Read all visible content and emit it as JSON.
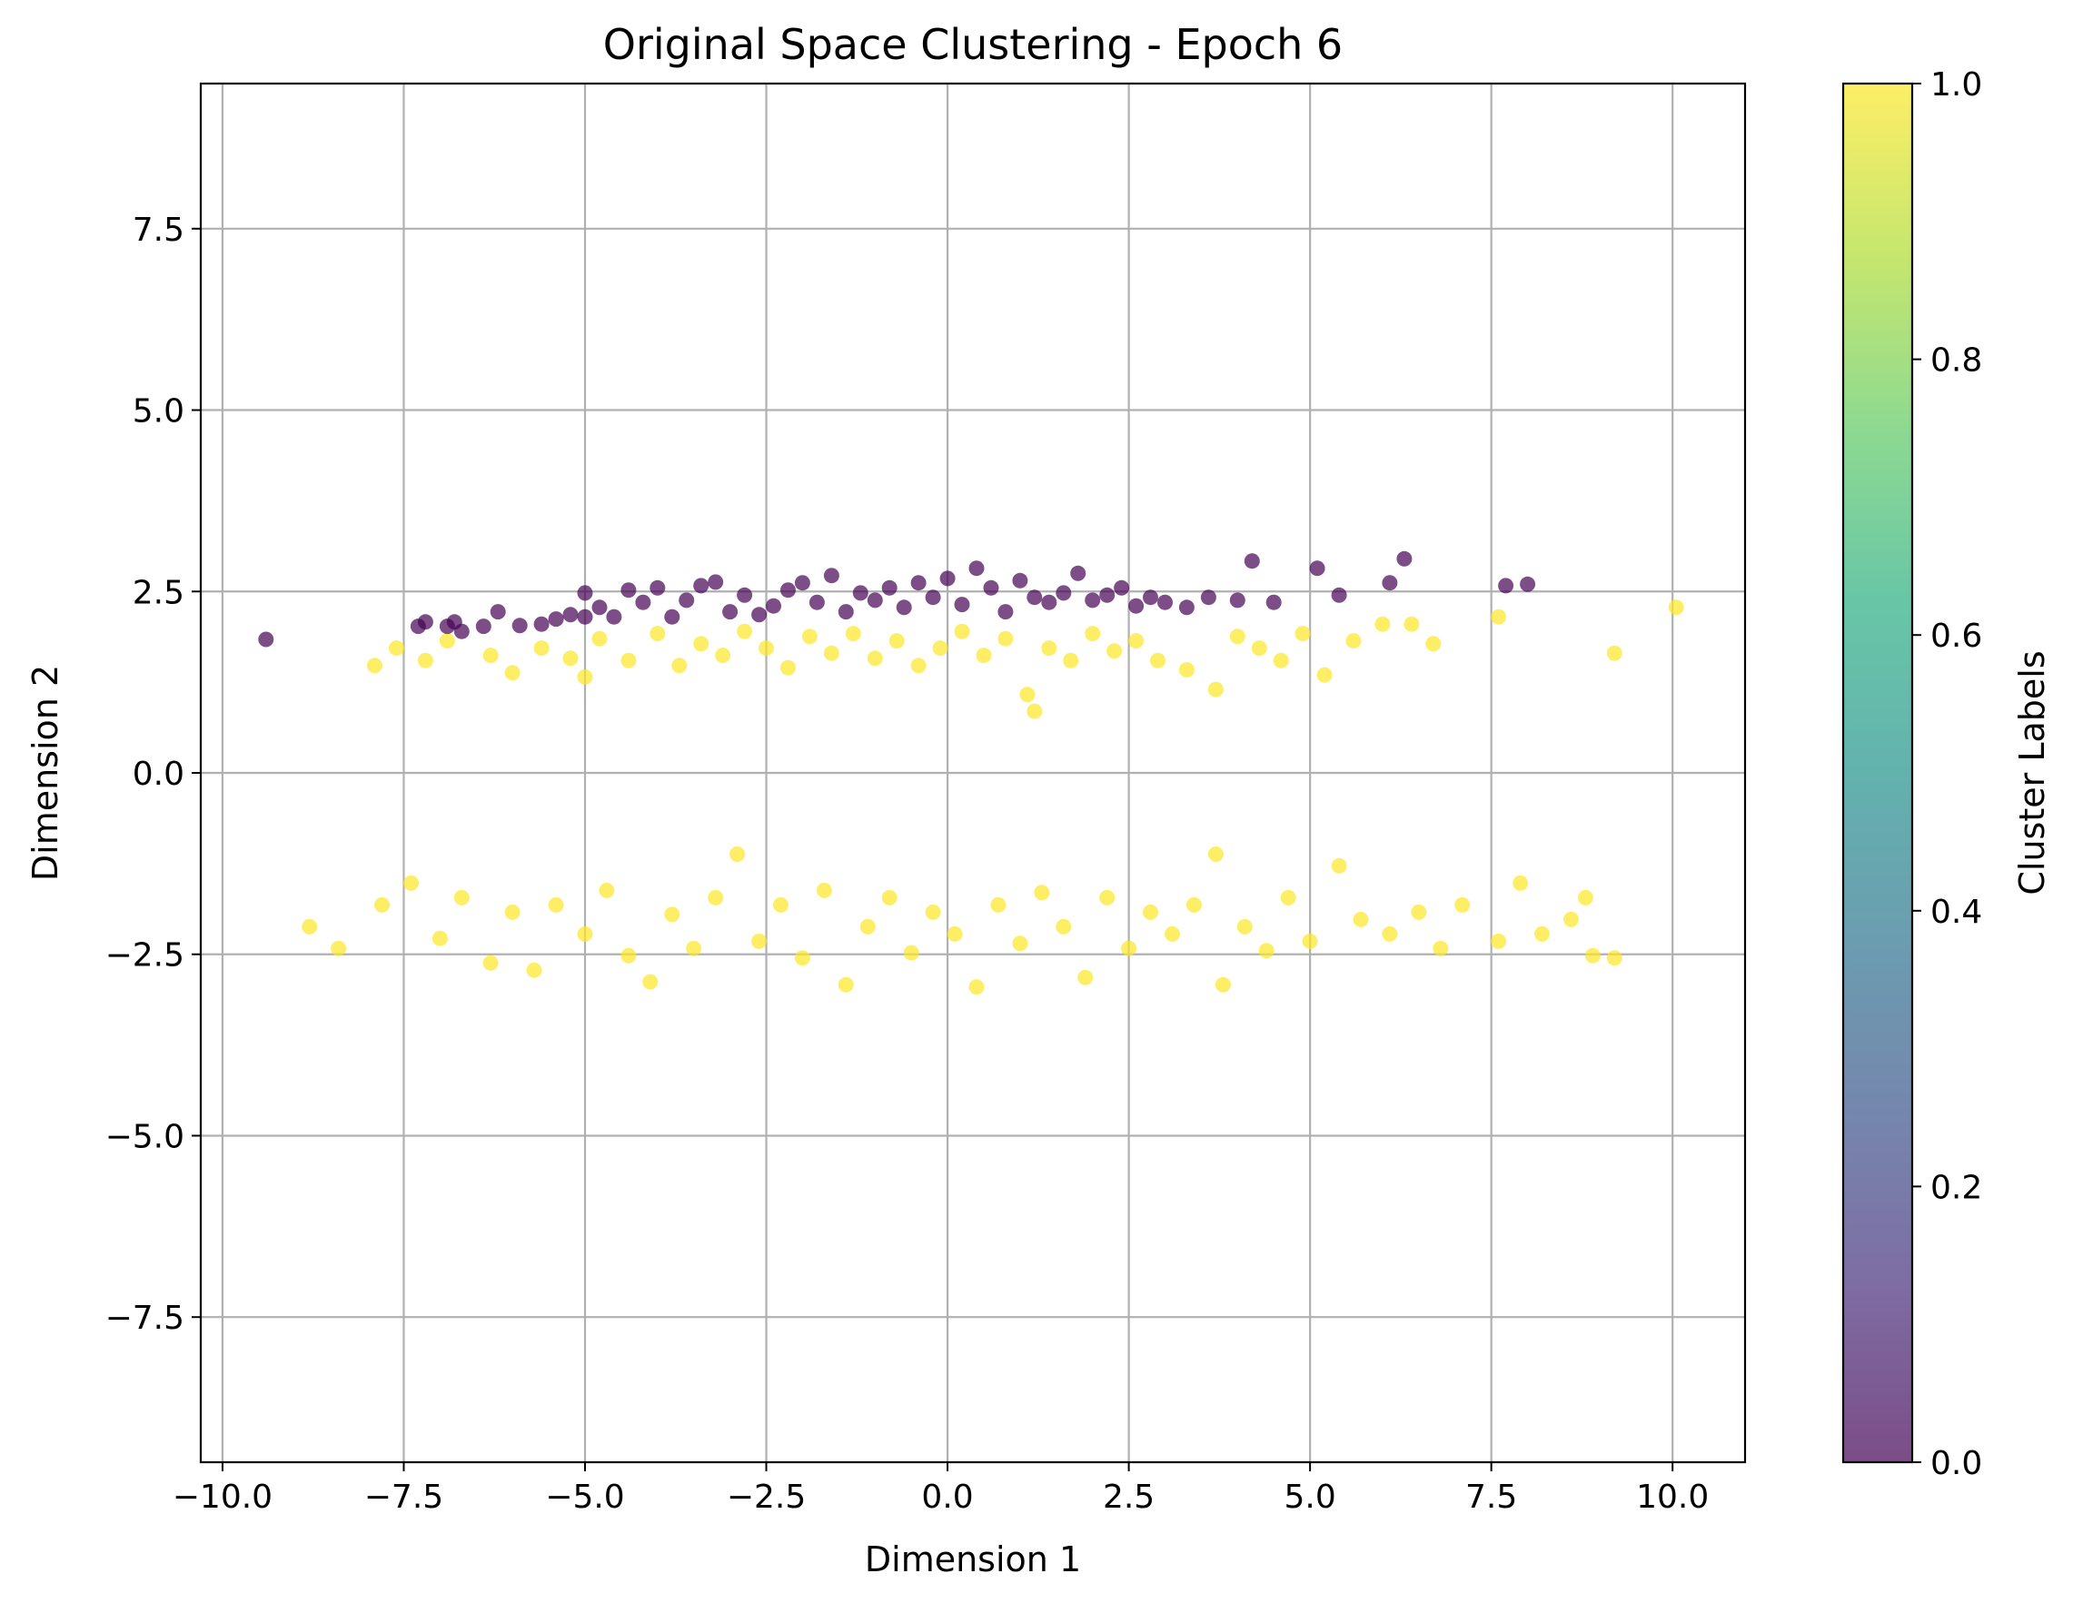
{
  "chart_data": {
    "type": "scatter",
    "title": "Original Space Clustering - Epoch 6",
    "xlabel": "Dimension 1",
    "ylabel": "Dimension 2",
    "xlim": [
      -10.3,
      11.0
    ],
    "ylim": [
      -9.5,
      9.5
    ],
    "grid": true,
    "xticks": [
      -10.0,
      -7.5,
      -5.0,
      -2.5,
      0.0,
      2.5,
      5.0,
      7.5,
      10.0
    ],
    "xtick_labels": [
      "−10.0",
      "−7.5",
      "−5.0",
      "−2.5",
      "0.0",
      "2.5",
      "5.0",
      "7.5",
      "10.0"
    ],
    "yticks": [
      -7.5,
      -5.0,
      -2.5,
      0.0,
      2.5,
      5.0,
      7.5
    ],
    "ytick_labels": [
      "−7.5",
      "−5.0",
      "−2.5",
      "0.0",
      "2.5",
      "5.0",
      "7.5"
    ],
    "colorbar": {
      "label": "Cluster Labels",
      "range": [
        0.0,
        1.0
      ],
      "ticks": [
        0.0,
        0.2,
        0.4,
        0.6,
        0.8,
        1.0
      ],
      "tick_labels": [
        "0.0",
        "0.2",
        "0.4",
        "0.6",
        "0.8",
        "1.0"
      ],
      "colormap": "viridis",
      "alpha": 0.7
    },
    "series": [
      {
        "label_value": 0,
        "color": "#440154",
        "points": [
          [
            -9.4,
            1.84
          ],
          [
            -7.3,
            2.02
          ],
          [
            -7.2,
            2.08
          ],
          [
            -6.9,
            2.02
          ],
          [
            -6.8,
            2.08
          ],
          [
            -6.7,
            1.95
          ],
          [
            -6.4,
            2.02
          ],
          [
            -6.2,
            2.22
          ],
          [
            -5.9,
            2.03
          ],
          [
            -5.6,
            2.05
          ],
          [
            -5.4,
            2.12
          ],
          [
            -5.2,
            2.18
          ],
          [
            -5.0,
            2.15
          ],
          [
            -5.0,
            2.48
          ],
          [
            -4.8,
            2.28
          ],
          [
            -4.6,
            2.15
          ],
          [
            -4.4,
            2.52
          ],
          [
            -4.2,
            2.35
          ],
          [
            -4.0,
            2.55
          ],
          [
            -3.8,
            2.15
          ],
          [
            -3.6,
            2.38
          ],
          [
            -3.4,
            2.58
          ],
          [
            -3.2,
            2.63
          ],
          [
            -3.0,
            2.22
          ],
          [
            -2.8,
            2.45
          ],
          [
            -2.6,
            2.18
          ],
          [
            -2.4,
            2.3
          ],
          [
            -2.2,
            2.52
          ],
          [
            -2.0,
            2.62
          ],
          [
            -1.8,
            2.35
          ],
          [
            -1.6,
            2.72
          ],
          [
            -1.4,
            2.22
          ],
          [
            -1.2,
            2.48
          ],
          [
            -1.0,
            2.38
          ],
          [
            -0.8,
            2.55
          ],
          [
            -0.6,
            2.28
          ],
          [
            -0.4,
            2.62
          ],
          [
            -0.2,
            2.42
          ],
          [
            0.0,
            2.68
          ],
          [
            0.2,
            2.32
          ],
          [
            0.4,
            2.82
          ],
          [
            0.6,
            2.55
          ],
          [
            0.8,
            2.22
          ],
          [
            1.0,
            2.65
          ],
          [
            1.2,
            2.42
          ],
          [
            1.4,
            2.35
          ],
          [
            1.6,
            2.48
          ],
          [
            1.8,
            2.75
          ],
          [
            2.0,
            2.38
          ],
          [
            2.2,
            2.45
          ],
          [
            2.4,
            2.55
          ],
          [
            2.6,
            2.3
          ],
          [
            2.8,
            2.42
          ],
          [
            3.0,
            2.35
          ],
          [
            3.3,
            2.28
          ],
          [
            3.6,
            2.42
          ],
          [
            4.0,
            2.38
          ],
          [
            4.2,
            2.92
          ],
          [
            4.5,
            2.35
          ],
          [
            5.1,
            2.82
          ],
          [
            5.4,
            2.45
          ],
          [
            6.1,
            2.62
          ],
          [
            6.3,
            2.95
          ],
          [
            7.7,
            2.58
          ],
          [
            8.0,
            2.6
          ]
        ]
      },
      {
        "label_value": 1,
        "color": "#fde725",
        "points": [
          [
            -7.9,
            1.48
          ],
          [
            -7.6,
            1.72
          ],
          [
            -7.2,
            1.55
          ],
          [
            -6.9,
            1.82
          ],
          [
            -6.3,
            1.62
          ],
          [
            -6.0,
            1.38
          ],
          [
            -5.6,
            1.72
          ],
          [
            -5.2,
            1.58
          ],
          [
            -5.0,
            1.32
          ],
          [
            -4.8,
            1.85
          ],
          [
            -4.4,
            1.55
          ],
          [
            -4.0,
            1.92
          ],
          [
            -3.7,
            1.48
          ],
          [
            -3.4,
            1.78
          ],
          [
            -3.1,
            1.62
          ],
          [
            -2.8,
            1.95
          ],
          [
            -2.5,
            1.72
          ],
          [
            -2.2,
            1.45
          ],
          [
            -1.9,
            1.88
          ],
          [
            -1.6,
            1.65
          ],
          [
            -1.3,
            1.92
          ],
          [
            -1.0,
            1.58
          ],
          [
            -0.7,
            1.82
          ],
          [
            -0.4,
            1.48
          ],
          [
            -0.1,
            1.72
          ],
          [
            0.2,
            1.95
          ],
          [
            0.5,
            1.62
          ],
          [
            0.8,
            1.85
          ],
          [
            1.1,
            1.08
          ],
          [
            1.2,
            0.85
          ],
          [
            1.4,
            1.72
          ],
          [
            1.7,
            1.55
          ],
          [
            2.0,
            1.92
          ],
          [
            2.3,
            1.68
          ],
          [
            2.6,
            1.82
          ],
          [
            2.9,
            1.55
          ],
          [
            3.3,
            1.42
          ],
          [
            3.7,
            1.15
          ],
          [
            4.0,
            1.88
          ],
          [
            4.3,
            1.72
          ],
          [
            4.6,
            1.55
          ],
          [
            4.9,
            1.92
          ],
          [
            5.2,
            1.35
          ],
          [
            5.6,
            1.82
          ],
          [
            6.0,
            2.05
          ],
          [
            6.4,
            2.05
          ],
          [
            6.7,
            1.78
          ],
          [
            7.6,
            2.15
          ],
          [
            9.2,
            1.65
          ],
          [
            10.05,
            2.28
          ],
          [
            -8.8,
            -2.12
          ],
          [
            -8.4,
            -2.42
          ],
          [
            -7.8,
            -1.82
          ],
          [
            -7.4,
            -1.52
          ],
          [
            -7.0,
            -2.28
          ],
          [
            -6.7,
            -1.72
          ],
          [
            -6.3,
            -2.62
          ],
          [
            -6.0,
            -1.92
          ],
          [
            -5.7,
            -2.72
          ],
          [
            -5.4,
            -1.82
          ],
          [
            -5.0,
            -2.22
          ],
          [
            -4.7,
            -1.62
          ],
          [
            -4.4,
            -2.52
          ],
          [
            -4.1,
            -2.88
          ],
          [
            -3.8,
            -1.95
          ],
          [
            -3.5,
            -2.42
          ],
          [
            -3.2,
            -1.72
          ],
          [
            -2.9,
            -1.12
          ],
          [
            -2.6,
            -2.32
          ],
          [
            -2.3,
            -1.82
          ],
          [
            -2.0,
            -2.55
          ],
          [
            -1.7,
            -1.62
          ],
          [
            -1.4,
            -2.92
          ],
          [
            -1.1,
            -2.12
          ],
          [
            -0.8,
            -1.72
          ],
          [
            -0.5,
            -2.48
          ],
          [
            -0.2,
            -1.92
          ],
          [
            0.1,
            -2.22
          ],
          [
            0.4,
            -2.95
          ],
          [
            0.7,
            -1.82
          ],
          [
            1.0,
            -2.35
          ],
          [
            1.3,
            -1.65
          ],
          [
            1.6,
            -2.12
          ],
          [
            1.9,
            -2.82
          ],
          [
            2.2,
            -1.72
          ],
          [
            2.5,
            -2.42
          ],
          [
            2.8,
            -1.92
          ],
          [
            3.1,
            -2.22
          ],
          [
            3.4,
            -1.82
          ],
          [
            3.7,
            -1.12
          ],
          [
            3.8,
            -2.92
          ],
          [
            4.1,
            -2.12
          ],
          [
            4.4,
            -2.45
          ],
          [
            4.7,
            -1.72
          ],
          [
            5.0,
            -2.32
          ],
          [
            5.4,
            -1.28
          ],
          [
            5.7,
            -2.02
          ],
          [
            6.1,
            -2.22
          ],
          [
            6.5,
            -1.92
          ],
          [
            6.8,
            -2.42
          ],
          [
            7.1,
            -1.82
          ],
          [
            7.6,
            -2.32
          ],
          [
            7.9,
            -1.52
          ],
          [
            8.2,
            -2.22
          ],
          [
            8.6,
            -2.02
          ],
          [
            8.8,
            -1.72
          ],
          [
            8.9,
            -2.52
          ],
          [
            9.2,
            -2.55
          ]
        ]
      }
    ]
  }
}
